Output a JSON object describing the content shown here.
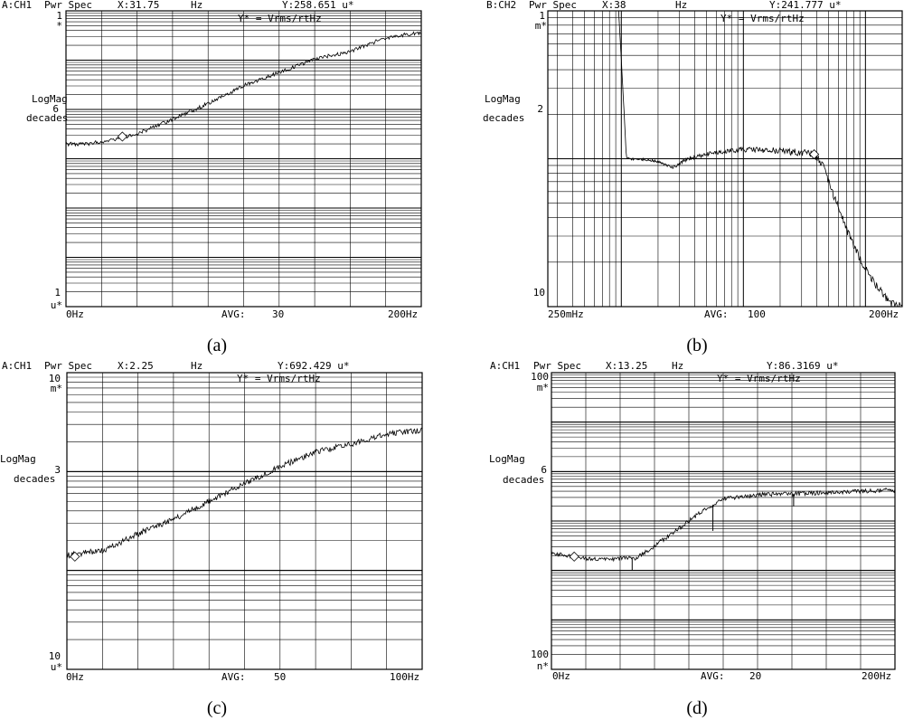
{
  "y_axis_label": "LogMag",
  "y_axis_unit": "decades",
  "formula": "Y* = Vrms/rtHz",
  "avg_label": "AVG:",
  "chart_data": [
    {
      "id": "a",
      "type": "line",
      "caption": "(a)",
      "channel": "A:CH1",
      "measurement": "Pwr Spec",
      "marker_x": "X:31.75",
      "x_unit": "Hz",
      "marker_y": "Y:258.651 u*",
      "y_top": "1",
      "y_top_unit": "*",
      "y_mid": "6",
      "y_bottom": "1",
      "y_bottom_unit": "u*",
      "x_start": "0Hz",
      "x_end": "200Hz",
      "avg": "30",
      "x_scale": "linear",
      "x_range": [
        0,
        200
      ],
      "y_decades": 6,
      "x_divisions": 10,
      "y_subdivisions": 9,
      "trace": {
        "x": [
          0,
          12,
          25,
          40,
          60,
          80,
          100,
          120,
          140,
          160,
          180,
          195,
          200
        ],
        "decade_pos": [
          2.7,
          2.7,
          2.62,
          2.5,
          2.2,
          1.88,
          1.52,
          1.25,
          0.98,
          0.82,
          0.55,
          0.46,
          0.46
        ],
        "noise": 0.04
      },
      "marker": {
        "x": 31.75,
        "decade_pos": 2.55
      },
      "spikes": [
        {
          "x": 200,
          "decade_pos": 1.35
        }
      ]
    },
    {
      "id": "b",
      "type": "line",
      "caption": "(b)",
      "channel": "B:CH2",
      "measurement": "Pwr Spec",
      "marker_x": "X:38",
      "x_unit": "Hz",
      "marker_y": "Y:241.777 u*",
      "y_top": "1",
      "y_top_unit": "m*",
      "y_mid": "2",
      "y_bottom": "10",
      "y_bottom_unit": "",
      "x_start": "250mHz",
      "x_end": "200Hz",
      "avg": "100",
      "x_scale": "log",
      "x_range": [
        0.25,
        200
      ],
      "y_decades": 2,
      "x_divisions": 12,
      "y_subdivisions": 9,
      "trace": {
        "x": [
          0.95,
          1.1,
          1.8,
          2.6,
          3.5,
          4.8,
          7,
          10,
          15,
          22,
          30,
          38,
          45,
          55,
          70,
          90,
          120,
          160,
          200
        ],
        "decade_pos": [
          0.0,
          1.0,
          1.01,
          1.06,
          1.0,
          0.97,
          0.95,
          0.94,
          0.94,
          0.95,
          0.96,
          0.97,
          1.05,
          1.25,
          1.48,
          1.68,
          1.85,
          1.98,
          2.0
        ],
        "noise": 0.025
      },
      "marker": {
        "x": 38,
        "decade_pos": 0.97
      },
      "spikes": []
    },
    {
      "id": "c",
      "type": "line",
      "caption": "(c)",
      "channel": "A:CH1",
      "measurement": "Pwr Spec",
      "marker_x": "X:2.25",
      "x_unit": "Hz",
      "marker_y": "Y:692.429 u*",
      "y_top": "10",
      "y_top_unit": "m*",
      "y_mid": "3",
      "y_bottom": "10",
      "y_bottom_unit": "u*",
      "x_start": "0Hz",
      "x_end": "100Hz",
      "avg": "50",
      "x_scale": "linear",
      "x_range": [
        0,
        100
      ],
      "y_decades": 3,
      "x_divisions": 10,
      "y_subdivisions": 9,
      "trace": {
        "x": [
          0,
          5,
          10,
          15,
          20,
          30,
          40,
          50,
          60,
          70,
          80,
          90,
          100
        ],
        "decade_pos": [
          1.85,
          1.82,
          1.8,
          1.72,
          1.63,
          1.48,
          1.3,
          1.12,
          0.95,
          0.8,
          0.72,
          0.62,
          0.58
        ],
        "noise": 0.03
      },
      "marker": {
        "x": 2.25,
        "decade_pos": 1.86
      },
      "spikes": []
    },
    {
      "id": "d",
      "type": "line",
      "caption": "(d)",
      "channel": "A:CH1",
      "measurement": "Pwr Spec",
      "marker_x": "X:13.25",
      "x_unit": "Hz",
      "marker_y": "Y:86.3169 u*",
      "y_top": "100",
      "y_top_unit": "m*",
      "y_mid": "6",
      "y_bottom": "100",
      "y_bottom_unit": "n*",
      "x_start": "0Hz",
      "x_end": "200Hz",
      "avg": "20",
      "x_scale": "linear",
      "x_range": [
        0,
        200
      ],
      "y_decades": 6,
      "x_divisions": 10,
      "y_subdivisions": 9,
      "trace": {
        "x": [
          0,
          10,
          20,
          40,
          50,
          60,
          80,
          90,
          100,
          120,
          140,
          160,
          180,
          195,
          200
        ],
        "decade_pos": [
          3.65,
          3.7,
          3.76,
          3.76,
          3.74,
          3.5,
          3.0,
          2.75,
          2.55,
          2.47,
          2.45,
          2.43,
          2.4,
          2.38,
          2.38
        ],
        "noise": 0.045
      },
      "marker": {
        "x": 13.25,
        "decade_pos": 3.72
      },
      "spikes": [
        {
          "x": 47,
          "decade_pos": 4.0
        },
        {
          "x": 94,
          "decade_pos": 3.2
        },
        {
          "x": 141,
          "decade_pos": 2.7
        },
        {
          "x": 200,
          "decade_pos": 3.0
        }
      ]
    }
  ]
}
